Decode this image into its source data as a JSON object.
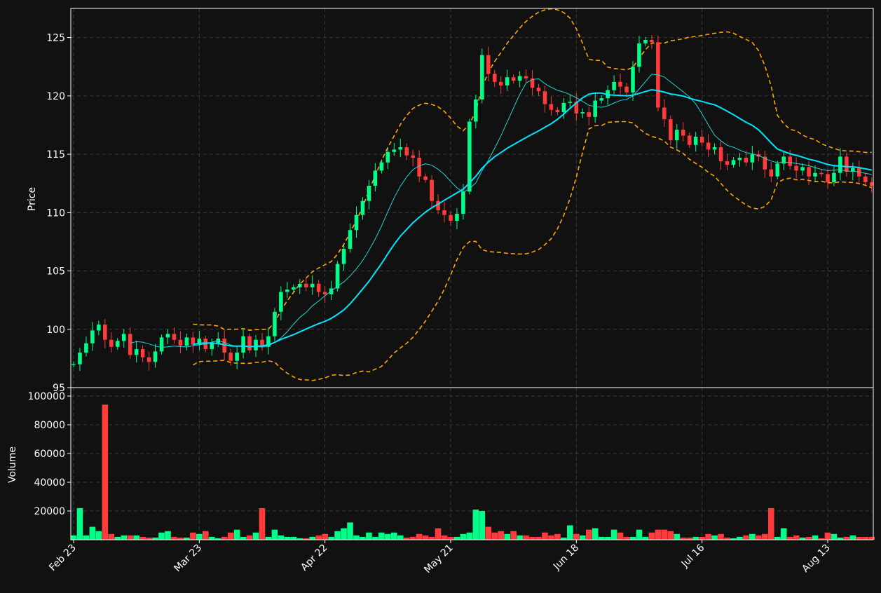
{
  "colors": {
    "background": "#111111",
    "up": "#00ff88",
    "down": "#ff3b3b",
    "grid": "#3a3a3a",
    "sma_fast": "#22d3d3",
    "sma_slow": "#00e5ff",
    "bollinger": "#ffa500",
    "axis": "#ffffff"
  },
  "chart_data": {
    "type": "candlestick",
    "ylabel_price": "Price",
    "ylabel_volume": "Volume",
    "price_ylim": [
      95,
      127.5
    ],
    "price_yticks": [
      95,
      100,
      105,
      110,
      115,
      120,
      125
    ],
    "volume_ylim": [
      0,
      100000
    ],
    "volume_yticks": [
      20000,
      40000,
      60000,
      80000,
      100000
    ],
    "xtick_labels": [
      "Feb 23",
      "Mar 23",
      "Apr 22",
      "May 21",
      "Jun 18",
      "Jul 16",
      "Aug 13"
    ],
    "xtick_index": [
      0,
      20,
      40,
      60,
      80,
      100,
      120
    ],
    "grid": true,
    "start_close": 97.0,
    "closes": [
      97.0,
      98.0,
      98.8,
      99.9,
      100.4,
      99.1,
      98.5,
      99.0,
      99.6,
      97.8,
      98.3,
      97.6,
      97.2,
      98.1,
      99.3,
      99.6,
      99.1,
      98.6,
      99.3,
      98.7,
      99.2,
      98.3,
      98.8,
      99.2,
      98.0,
      97.3,
      98.0,
      99.4,
      98.2,
      99.1,
      98.5,
      99.4,
      101.5,
      103.2,
      103.4,
      103.6,
      103.9,
      103.6,
      103.9,
      103.2,
      103.0,
      103.5,
      105.6,
      106.9,
      108.5,
      109.8,
      111.0,
      112.3,
      113.6,
      114.3,
      115.2,
      115.4,
      115.6,
      114.9,
      114.7,
      113.1,
      112.8,
      111.0,
      110.2,
      109.8,
      109.3,
      109.9,
      111.8,
      117.8,
      119.7,
      123.5,
      121.9,
      121.2,
      120.9,
      121.6,
      121.3,
      121.7,
      121.5,
      120.7,
      120.4,
      119.3,
      118.8,
      118.6,
      119.4,
      119.5,
      118.5,
      118.6,
      118.2,
      119.6,
      119.8,
      120.5,
      121.2,
      120.8,
      120.3,
      122.5,
      124.5,
      124.8,
      124.6,
      119.0,
      118.0,
      116.2,
      117.1,
      116.6,
      115.8,
      116.5,
      116.0,
      115.4,
      115.6,
      114.4,
      114.1,
      114.5,
      114.7,
      114.3,
      115.0,
      114.8,
      113.7,
      113.1,
      114.2,
      114.8,
      114.0,
      113.6,
      113.9,
      113.1,
      113.4,
      113.3,
      112.6,
      113.4,
      114.8,
      113.5,
      113.8,
      113.1,
      112.6,
      112.3
    ],
    "volumes": [
      3000,
      22000,
      3000,
      9000,
      6000,
      94000,
      4000,
      2000,
      3000,
      3000,
      3000,
      2000,
      1500,
      1500,
      5000,
      6000,
      2000,
      1500,
      1500,
      5000,
      4000,
      6000,
      2000,
      1000,
      2000,
      5000,
      7000,
      2000,
      3000,
      5000,
      22000,
      2000,
      7000,
      3000,
      2000,
      2000,
      1000,
      1000,
      2000,
      3000,
      4000,
      2000,
      6000,
      8000,
      12000,
      3000,
      2000,
      5000,
      2000,
      5000,
      4000,
      5000,
      3000,
      1500,
      2000,
      4000,
      3000,
      2000,
      8000,
      3000,
      2000,
      2000,
      4000,
      5000,
      21000,
      20000,
      9000,
      5000,
      6000,
      4000,
      6000,
      3000,
      3000,
      2000,
      2000,
      5000,
      3000,
      4000,
      1500,
      10000,
      4000,
      3000,
      7000,
      8000,
      2000,
      2000,
      7000,
      5000,
      2000,
      2000,
      7000,
      2000,
      5000,
      7000,
      7000,
      6000,
      4000,
      1500,
      1500,
      2000,
      2000,
      4000,
      3000,
      4000,
      1500,
      1000,
      2000,
      3000,
      4000,
      3000,
      4000,
      22000,
      2000,
      8000,
      2000,
      3000,
      1500,
      2000,
      3000,
      1000,
      5000,
      4000,
      1500,
      2000,
      3000,
      2000,
      2000,
      2000
    ]
  }
}
